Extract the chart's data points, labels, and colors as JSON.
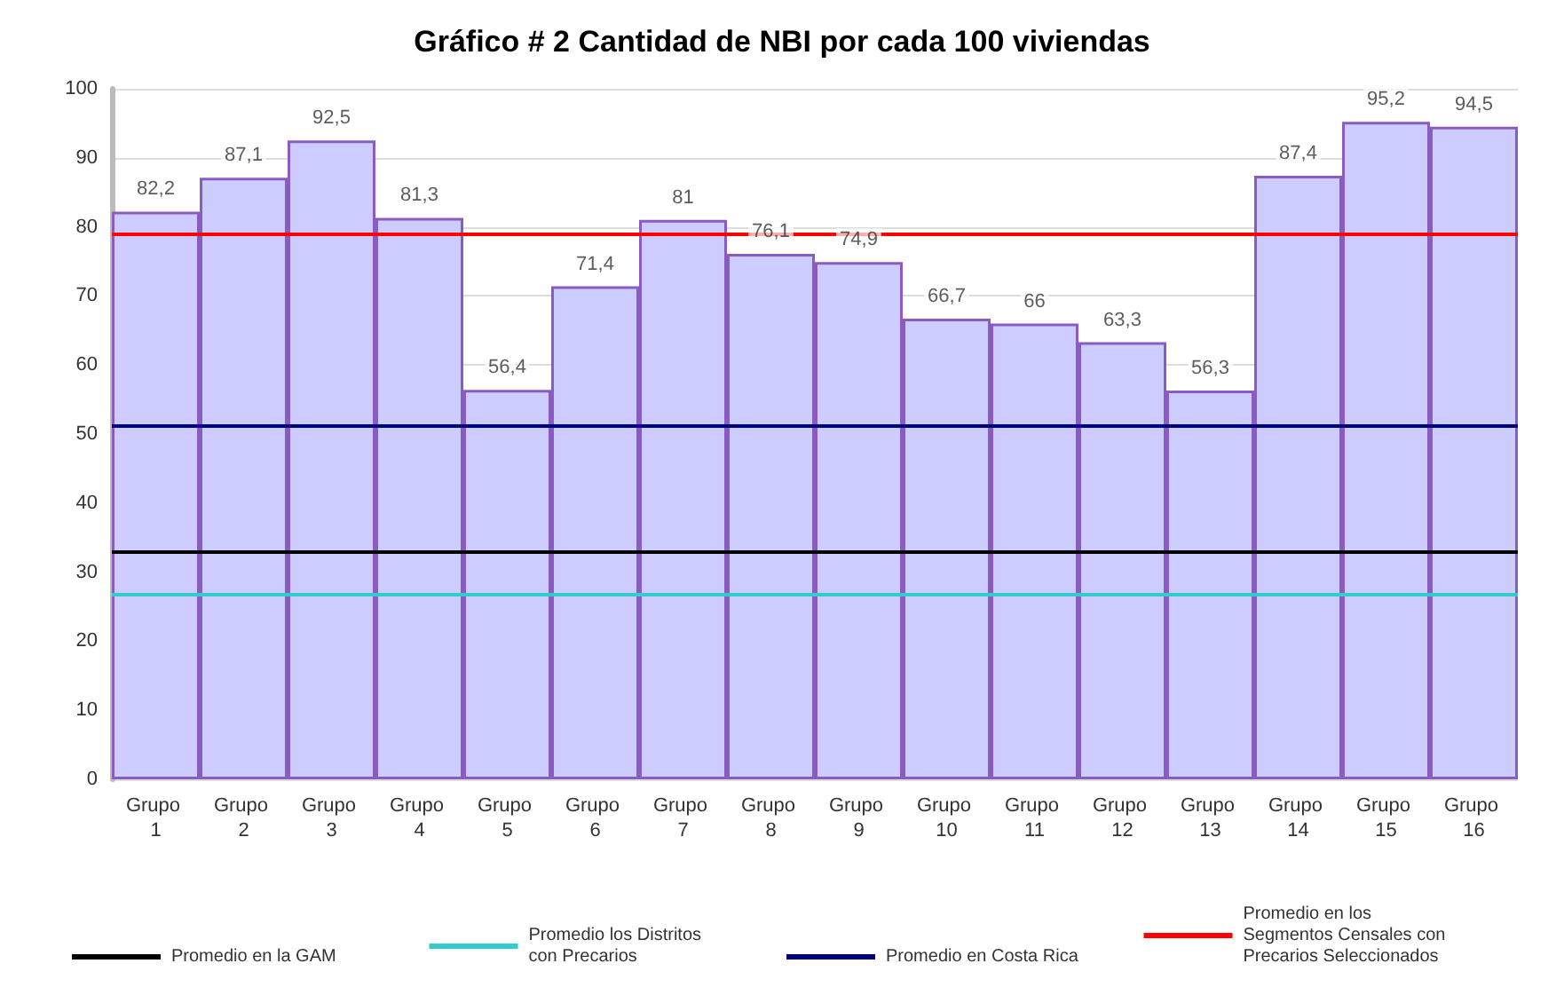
{
  "chart_data": {
    "type": "bar",
    "title": "Gráfico # 2 Cantidad de NBI por cada 100 viviendas",
    "categories": [
      "Grupo 1",
      "Grupo 2",
      "Grupo 3",
      "Grupo 4",
      "Grupo 5",
      "Grupo 6",
      "Grupo 7",
      "Grupo 8",
      "Grupo 9",
      "Grupo 10",
      "Grupo 11",
      "Grupo 12",
      "Grupo 13",
      "Grupo 14",
      "Grupo 15",
      "Grupo 16"
    ],
    "values": [
      82.2,
      87.1,
      92.5,
      81.3,
      56.4,
      71.4,
      81,
      76.1,
      74.9,
      66.7,
      66,
      63.3,
      56.3,
      87.4,
      95.2,
      94.5
    ],
    "value_labels": [
      "82,2",
      "87,1",
      "92,5",
      "81,3",
      "56,4",
      "71,4",
      "81",
      "76,1",
      "74,9",
      "66,7",
      "66",
      "63,3",
      "56,3",
      "87,4",
      "95,2",
      "94,5"
    ],
    "color": "#ccccff",
    "ylim": [
      0,
      100
    ],
    "yticks": [
      0,
      10,
      20,
      30,
      40,
      50,
      60,
      70,
      80,
      90,
      100
    ],
    "grid": "y",
    "legend": "bottom",
    "ref_lines": [
      {
        "axis": "y",
        "value": 33,
        "label": "Promedio en la GAM",
        "color": "#000000"
      },
      {
        "axis": "y",
        "value": 26.8,
        "label": "Promedio los Distritos con Precarios",
        "color": "#33cccc"
      },
      {
        "axis": "y",
        "value": 51.3,
        "label": "Promedio en Costa Rica",
        "color": "#000080"
      },
      {
        "axis": "y",
        "value": 79.1,
        "label": "Promedio en los Segmentos Censales con Precarios Seleccionados",
        "color": "#ff0000"
      }
    ]
  }
}
